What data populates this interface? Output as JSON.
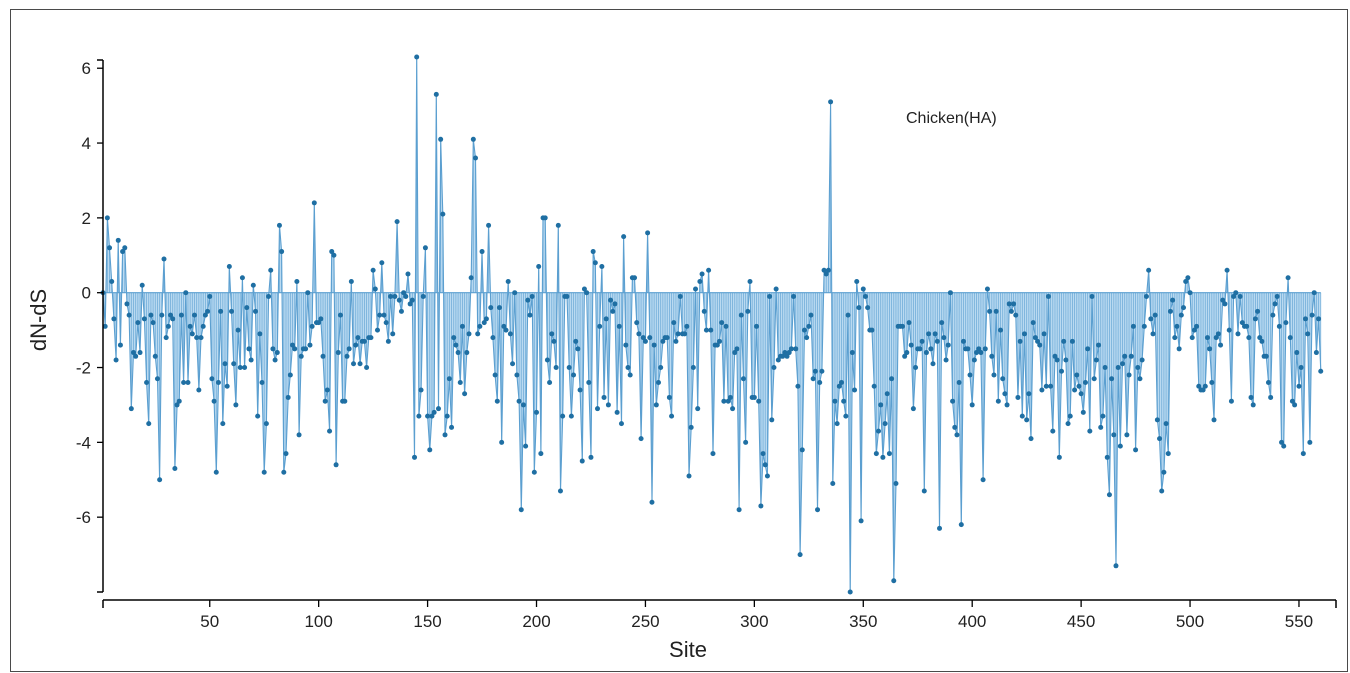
{
  "chart_data": {
    "type": "line",
    "style": "stem plot with filled area to zero, markers at points",
    "title": "",
    "annotation": "Chicken(HA)",
    "xlabel": "Site",
    "ylabel": "dN-dS",
    "xlim": [
      1,
      567
    ],
    "ylim": [
      -8,
      6.3
    ],
    "x_ticks": [
      50,
      100,
      150,
      200,
      250,
      300,
      350,
      400,
      450,
      500,
      550
    ],
    "y_ticks": [
      -6,
      -4,
      -2,
      0,
      2,
      4,
      6
    ],
    "grid": false,
    "legend": "none",
    "colors": {
      "line": "#5b9fd0",
      "fill": "#aed4ee",
      "marker": "#1f6fa3",
      "axis": "#000000"
    },
    "series": [
      {
        "x_start": 1,
        "x_step": 1,
        "values": [
          0,
          -0.9,
          2.0,
          1.2,
          0.3,
          -0.7,
          -1.8,
          1.4,
          -1.4,
          1.1,
          1.2,
          -0.3,
          -0.6,
          -3.1,
          -1.6,
          -1.7,
          -0.8,
          -1.6,
          0.2,
          -0.7,
          -2.4,
          -3.5,
          -0.6,
          -0.8,
          -1.7,
          -2.3,
          -5.0,
          -0.6,
          0.9,
          -1.2,
          -0.9,
          -0.6,
          -0.7,
          -4.7,
          -3.0,
          -2.9,
          -0.6,
          -2.4,
          0,
          -2.4,
          -0.9,
          -1.1,
          -0.6,
          -1.2,
          -2.6,
          -1.2,
          -0.9,
          -0.6,
          -0.5,
          -0.1,
          -2.3,
          -2.9,
          -4.8,
          -2.4,
          -0.5,
          -3.5,
          -1.9,
          -2.5,
          0.7,
          -0.5,
          -1.9,
          -3.0,
          -1.0,
          -2.0,
          0.4,
          -2.0,
          -0.4,
          -1.5,
          -1.8,
          0.2,
          -0.5,
          -3.3,
          -1.1,
          -2.4,
          -4.8,
          -3.5,
          -0.1,
          0.6,
          -1.5,
          -1.8,
          -1.6,
          1.8,
          1.1,
          -4.8,
          -4.3,
          -2.8,
          -2.2,
          -1.4,
          -1.5,
          0.3,
          -3.8,
          -1.7,
          -1.5,
          -1.5,
          0,
          -1.4,
          -0.9,
          2.4,
          -0.8,
          -0.8,
          -0.7,
          -1.7,
          -2.9,
          -2.6,
          -3.7,
          1.1,
          1.0,
          -4.6,
          -1.6,
          -0.6,
          -2.9,
          -2.9,
          -1.7,
          -1.5,
          0.3,
          -1.9,
          -1.4,
          -1.2,
          -1.9,
          -1.3,
          -1.3,
          -2.0,
          -1.2,
          -1.2,
          0.6,
          0.1,
          -1.0,
          -0.6,
          0.8,
          -0.6,
          -0.8,
          -1.3,
          -0.1,
          -1.1,
          -0.1,
          1.9,
          -0.2,
          -0.5,
          0,
          -0.1,
          0.5,
          -0.3,
          -0.2,
          -4.4,
          6.3,
          -3.3,
          -2.6,
          -0.1,
          1.2,
          -3.3,
          -4.2,
          -3.3,
          -3.2,
          5.3,
          -3.1,
          4.1,
          2.1,
          -3.8,
          -3.3,
          -2.3,
          -3.6,
          -1.2,
          -1.4,
          -1.6,
          -2.4,
          -0.9,
          -2.7,
          -1.6,
          -1.1,
          0.4,
          4.1,
          3.6,
          -1.1,
          -0.9,
          1.1,
          -0.8,
          -0.7,
          1.8,
          -0.4,
          -1.2,
          -2.2,
          -2.9,
          -0.4,
          -4.0,
          -0.9,
          -1.0,
          0.3,
          -1.1,
          -1.9,
          0,
          -2.2,
          -2.9,
          -5.8,
          -3.0,
          -4.1,
          -0.2,
          -0.6,
          -0.1,
          -4.8,
          -3.2,
          0.7,
          -4.3,
          2.0,
          2.0,
          -1.8,
          -2.4,
          -1.1,
          -1.3,
          -2.0,
          1.8,
          -5.3,
          -3.3,
          -0.1,
          -0.1,
          -2.0,
          -3.3,
          -2.2,
          -1.3,
          -1.5,
          -2.6,
          -4.5,
          0.1,
          0,
          -2.4,
          -4.4,
          1.1,
          0.8,
          -3.1,
          -0.9,
          0.7,
          -2.8,
          -0.7,
          -3.0,
          -0.2,
          -0.5,
          -0.3,
          -3.2,
          -0.9,
          -3.5,
          1.5,
          -1.4,
          -2.0,
          -2.2,
          0.4,
          0.4,
          -0.8,
          -1.1,
          -3.9,
          -1.2,
          -1.3,
          1.6,
          -1.2,
          -5.6,
          -1.4,
          -3.0,
          -2.4,
          -2.0,
          -1.3,
          -1.2,
          -1.2,
          -2.8,
          -3.3,
          -0.8,
          -1.3,
          -1.1,
          -0.1,
          -1.1,
          -1.1,
          -0.9,
          -4.9,
          -3.6,
          -2.0,
          0.1,
          -3.1,
          0.3,
          0.5,
          -0.5,
          -1.0,
          0.6,
          -1.0,
          -4.3,
          -1.4,
          -1.4,
          -1.3,
          -0.8,
          -2.9,
          -0.9,
          -2.9,
          -2.8,
          -3.1,
          -1.6,
          -1.5,
          -5.8,
          -0.6,
          -2.3,
          -4.0,
          -0.5,
          0.3,
          -2.8,
          -2.8,
          -0.9,
          -2.9,
          -5.7,
          -4.3,
          -4.6,
          -4.9,
          -0.1,
          -3.4,
          -2.0,
          0.1,
          -1.8,
          -1.7,
          -1.7,
          -1.6,
          -1.7,
          -1.6,
          -1.5,
          -0.1,
          -1.5,
          -2.5,
          -7.0,
          -4.2,
          -1.0,
          -1.2,
          -0.9,
          -0.6,
          -2.3,
          -2.1,
          -5.8,
          -2.4,
          -2.1,
          0.6,
          0.5,
          0.6,
          5.1,
          -5.1,
          -2.9,
          -3.5,
          -2.5,
          -2.4,
          -2.9,
          -3.3,
          -0.6,
          -8.0,
          -1.6,
          -2.6,
          0.3,
          -0.4,
          -6.1,
          0.1,
          -0.1,
          -0.4,
          -1.0,
          -1.0,
          -2.5,
          -4.3,
          -3.7,
          -3.0,
          -4.4,
          -3.5,
          -2.7,
          -4.3,
          -2.3,
          -7.7,
          -5.1,
          -0.9,
          -0.9,
          -0.9,
          -1.7,
          -1.6,
          -0.8,
          -1.4,
          -3.1,
          -2.0,
          -1.5,
          -1.5,
          -1.3,
          -5.3,
          -1.6,
          -1.1,
          -1.5,
          -1.9,
          -1.1,
          -1.3,
          -6.3,
          -0.8,
          -1.2,
          -1.8,
          -1.4,
          0,
          -2.9,
          -3.6,
          -3.8,
          -2.4,
          -6.2,
          -1.3,
          -1.5,
          -1.5,
          -2.2,
          -3.0,
          -1.8,
          -1.6,
          -1.5,
          -1.6,
          -5.0,
          -1.5,
          0.1,
          -0.5,
          -1.7,
          -2.2,
          -0.5,
          -2.9,
          -1.0,
          -2.3,
          -2.7,
          -3.0,
          -0.3,
          -0.5,
          -0.3,
          -0.6,
          -2.8,
          -1.3,
          -3.3,
          -1.1,
          -3.4,
          -2.7,
          -3.9,
          -0.8,
          -1.2,
          -1.3,
          -1.4,
          -2.6,
          -1.1,
          -2.5,
          -0.1,
          -2.5,
          -3.7,
          -1.7,
          -1.8,
          -4.4,
          -2.1,
          -1.3,
          -1.8,
          -3.5,
          -3.3,
          -1.3,
          -2.6,
          -2.2,
          -2.5,
          -2.7,
          -3.2,
          -2.4,
          -1.5,
          -3.7,
          -0.1,
          -2.3,
          -1.8,
          -1.4,
          -3.6,
          -3.3,
          -2.0,
          -4.4,
          -5.4,
          -2.3,
          -3.8,
          -7.3,
          -2.0,
          -4.1,
          -1.9,
          -1.7,
          -3.8,
          -2.2,
          -1.7,
          -0.9,
          -4.2,
          -2.0,
          -2.3,
          -1.8,
          -0.9,
          -0.1,
          0.6,
          -0.7,
          -1.1,
          -0.6,
          -3.4,
          -3.9,
          -5.3,
          -4.8,
          -3.5,
          -4.3,
          -0.5,
          -0.2,
          -1.2,
          -0.9,
          -1.5,
          -0.6,
          -0.4,
          0.3,
          0.4,
          0,
          -1.2,
          -1.0,
          -0.9,
          -2.5,
          -2.6,
          -2.6,
          -2.5,
          -1.2,
          -1.5,
          -2.4,
          -3.4,
          -1.2,
          -1.1,
          -1.4,
          -0.2,
          -0.3,
          0.6,
          -1.0,
          -2.9,
          -0.1,
          0,
          -1.1,
          -0.1,
          -0.8,
          -0.9,
          -0.9,
          -1.2,
          -2.8,
          -3.0,
          -0.7,
          -0.5,
          -1.2,
          -1.3,
          -1.7,
          -1.7,
          -2.4,
          -2.8,
          -0.6,
          -0.3,
          -0.1,
          -0.9,
          -4.0,
          -4.1,
          -0.8,
          0.4,
          -1.2,
          -2.9,
          -3.0,
          -1.6,
          -2.5,
          -2.0,
          -4.3,
          -0.7,
          -1.1,
          -4.0,
          -0.6,
          0,
          -1.6,
          -0.7,
          -2.1
        ]
      }
    ]
  }
}
